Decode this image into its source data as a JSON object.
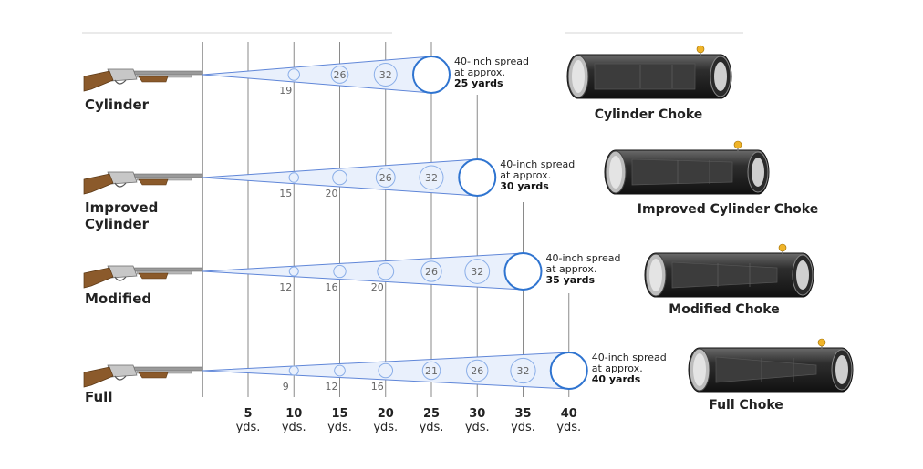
{
  "colors": {
    "cone": "#5f86d8",
    "cone_fill": "#e9f0fc",
    "final_circle": "#2f74d0",
    "grid": "#8a8a8a",
    "stock": "#8b5a2b",
    "barrel": "#9a9a9a",
    "bead": "#f0b429"
  },
  "yard_markers": [
    {
      "num": "5",
      "unit": "yds."
    },
    {
      "num": "10",
      "unit": "yds."
    },
    {
      "num": "15",
      "unit": "yds."
    },
    {
      "num": "20",
      "unit": "yds."
    },
    {
      "num": "25",
      "unit": "yds."
    },
    {
      "num": "30",
      "unit": "yds."
    },
    {
      "num": "35",
      "unit": "yds."
    },
    {
      "num": "40",
      "unit": "yds."
    }
  ],
  "chokes": [
    {
      "gun_label": [
        "Cylinder"
      ],
      "spread_line1": "40-inch spread",
      "spread_line2": "at approx.",
      "spread_yards": "25 yards",
      "choke_name": "Cylinder Choke",
      "end_yards": 25,
      "points": [
        {
          "yards": 10,
          "label": "19"
        },
        {
          "yards": 15,
          "label": "26"
        },
        {
          "yards": 20,
          "label": "32"
        }
      ]
    },
    {
      "gun_label": [
        "Improved",
        "Cylinder"
      ],
      "spread_line1": "40-inch spread",
      "spread_line2": "at approx.",
      "spread_yards": "30 yards",
      "choke_name": "Improved Cylinder Choke",
      "end_yards": 30,
      "points": [
        {
          "yards": 10,
          "label": "15"
        },
        {
          "yards": 15,
          "label": "20"
        },
        {
          "yards": 20,
          "label": "26"
        },
        {
          "yards": 25,
          "label": "32"
        }
      ]
    },
    {
      "gun_label": [
        "Modified"
      ],
      "spread_line1": "40-inch spread",
      "spread_line2": "at approx.",
      "spread_yards": "35 yards",
      "choke_name": "Modified Choke",
      "end_yards": 35,
      "points": [
        {
          "yards": 10,
          "label": "12"
        },
        {
          "yards": 15,
          "label": "16"
        },
        {
          "yards": 20,
          "label": "20"
        },
        {
          "yards": 25,
          "label": "26"
        },
        {
          "yards": 30,
          "label": "32"
        }
      ]
    },
    {
      "gun_label": [
        "Full"
      ],
      "spread_line1": "40-inch spread",
      "spread_line2": "at approx.",
      "spread_yards": "40 yards",
      "choke_name": "Full Choke",
      "end_yards": 40,
      "points": [
        {
          "yards": 10,
          "label": "9"
        },
        {
          "yards": 15,
          "label": "12"
        },
        {
          "yards": 20,
          "label": "16"
        },
        {
          "yards": 25,
          "label": "21"
        },
        {
          "yards": 30,
          "label": "26"
        },
        {
          "yards": 35,
          "label": "32"
        }
      ]
    }
  ]
}
